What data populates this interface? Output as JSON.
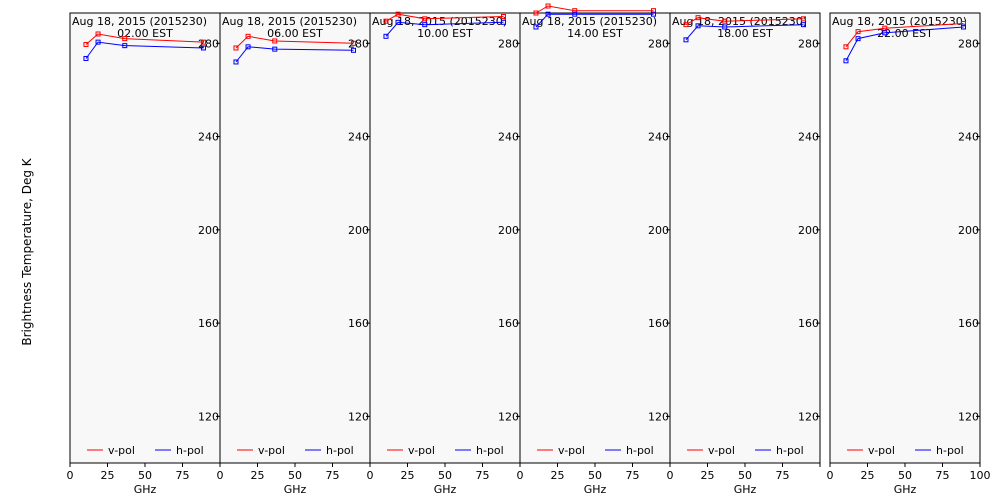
{
  "figure": {
    "ylabel": "Brightness Temperature, Deg K",
    "xlabel": "GHz"
  },
  "chart_data": [
    {
      "type": "line",
      "title": "Aug 18, 2015 (2015230)",
      "subtitle": "02.00 EST",
      "xlabel": "GHz",
      "ylabel": "Brightness Temperature, Deg K",
      "x": [
        10.65,
        18.7,
        36.5,
        89
      ],
      "xlim": [
        0,
        100
      ],
      "ylim": [
        100,
        293
      ],
      "xticks": [
        0,
        25,
        50,
        75,
        100
      ],
      "yticks": [
        120,
        160,
        200,
        240,
        280
      ],
      "grid": false,
      "legend": "bottom",
      "series": [
        {
          "name": "v-pol",
          "color": "#ff0000",
          "values": [
            279.5,
            284,
            282,
            280.5
          ]
        },
        {
          "name": "h-pol",
          "color": "#0000ff",
          "values": [
            273.5,
            280.5,
            279,
            278
          ]
        }
      ]
    },
    {
      "type": "line",
      "title": "Aug 18, 2015 (2015230)",
      "subtitle": "06.00 EST",
      "xlabel": "GHz",
      "ylabel": "Brightness Temperature, Deg K",
      "x": [
        10.65,
        18.7,
        36.5,
        89
      ],
      "xlim": [
        0,
        100
      ],
      "ylim": [
        100,
        293
      ],
      "xticks": [
        0,
        25,
        50,
        75,
        100
      ],
      "yticks": [
        120,
        160,
        200,
        240,
        280
      ],
      "grid": false,
      "legend": "bottom",
      "series": [
        {
          "name": "v-pol",
          "color": "#ff0000",
          "values": [
            278,
            283,
            281,
            280
          ]
        },
        {
          "name": "h-pol",
          "color": "#0000ff",
          "values": [
            272,
            278.5,
            277.5,
            277
          ]
        }
      ]
    },
    {
      "type": "line",
      "title": "Aug 18, 2015 (2015230)",
      "subtitle": "10.00 EST",
      "xlabel": "GHz",
      "ylabel": "Brightness Temperature, Deg K",
      "x": [
        10.65,
        18.7,
        36.5,
        89
      ],
      "xlim": [
        0,
        100
      ],
      "ylim": [
        100,
        293
      ],
      "xticks": [
        0,
        25,
        50,
        75,
        100
      ],
      "yticks": [
        120,
        160,
        200,
        240,
        280
      ],
      "grid": false,
      "legend": "bottom",
      "series": [
        {
          "name": "v-pol",
          "color": "#ff0000",
          "values": [
            289.5,
            292.5,
            290.5,
            291.5
          ]
        },
        {
          "name": "h-pol",
          "color": "#0000ff",
          "values": [
            283,
            289,
            288,
            289
          ]
        }
      ]
    },
    {
      "type": "line",
      "title": "Aug 18, 2015 (2015230)",
      "subtitle": "14.00 EST",
      "xlabel": "GHz",
      "ylabel": "Brightness Temperature, Deg K",
      "x": [
        10.65,
        18.7,
        36.5,
        89
      ],
      "xlim": [
        0,
        100
      ],
      "ylim": [
        100,
        293
      ],
      "xticks": [
        0,
        25,
        50,
        75,
        100
      ],
      "yticks": [
        120,
        160,
        200,
        240,
        280
      ],
      "grid": false,
      "legend": "bottom",
      "series": [
        {
          "name": "v-pol",
          "color": "#ff0000",
          "values": [
            293,
            296,
            294,
            294
          ]
        },
        {
          "name": "h-pol",
          "color": "#0000ff",
          "values": [
            287,
            292.5,
            292.5,
            292.5
          ]
        }
      ]
    },
    {
      "type": "line",
      "title": "Aug 18, 2015 (2015230)",
      "subtitle": "18.00 EST",
      "xlabel": "GHz",
      "ylabel": "Brightness Temperature, Deg K",
      "x": [
        10.65,
        18.7,
        36.5,
        89
      ],
      "xlim": [
        0,
        100
      ],
      "ylim": [
        100,
        293
      ],
      "xticks": [
        0,
        25,
        50,
        75,
        100
      ],
      "yticks": [
        120,
        160,
        200,
        240,
        280
      ],
      "grid": false,
      "legend": "bottom",
      "series": [
        {
          "name": "v-pol",
          "color": "#ff0000",
          "values": [
            288,
            291,
            289.5,
            290.5
          ]
        },
        {
          "name": "h-pol",
          "color": "#0000ff",
          "values": [
            281.5,
            287.5,
            287,
            288
          ]
        }
      ]
    },
    {
      "type": "line",
      "title": "Aug 18, 2015 (2015230)",
      "subtitle": "22.00 EST",
      "xlabel": "GHz",
      "ylabel": "Brightness Temperature, Deg K",
      "x": [
        10.65,
        18.7,
        36.5,
        89
      ],
      "xlim": [
        0,
        100
      ],
      "ylim": [
        100,
        293
      ],
      "xticks": [
        0,
        25,
        50,
        75,
        100
      ],
      "yticks": [
        120,
        160,
        200,
        240,
        280
      ],
      "grid": false,
      "legend": "bottom",
      "series": [
        {
          "name": "v-pol",
          "color": "#ff0000",
          "values": [
            278.5,
            285,
            286.5,
            288.5
          ]
        },
        {
          "name": "h-pol",
          "color": "#0000ff",
          "values": [
            272.5,
            282,
            284.5,
            287
          ]
        }
      ]
    }
  ]
}
